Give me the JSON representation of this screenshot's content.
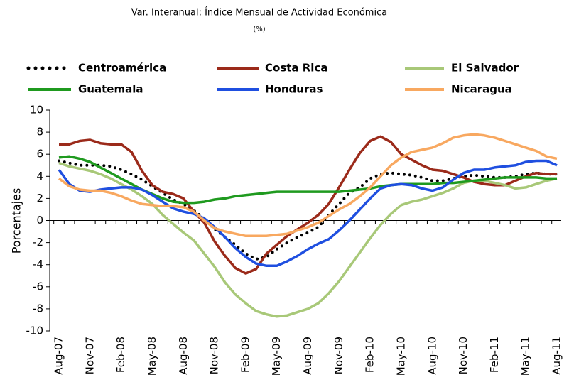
{
  "chart_data": {
    "type": "line",
    "title": "Var. Interanual: Índice Mensual de Actividad Económica",
    "subtitle": "(%)",
    "y_label": "Porcentajes",
    "categories": [
      "Aug-07",
      null,
      null,
      "Nov-07",
      null,
      null,
      "Feb-08",
      null,
      null,
      "May-08",
      null,
      null,
      "Aug-08",
      null,
      null,
      "Nov-08",
      null,
      null,
      "Feb-09",
      null,
      null,
      "May-09",
      null,
      null,
      "Aug-09",
      null,
      null,
      "Nov-09",
      null,
      null,
      "Feb-10",
      null,
      null,
      "May-10",
      null,
      null,
      "Aug-10",
      null,
      null,
      "Nov-10",
      null,
      null,
      "Feb-11",
      null,
      null,
      "May-11",
      null,
      null,
      "Aug-11"
    ],
    "ylim": [
      -10,
      10
    ],
    "yticks": [
      -10,
      -8,
      -6,
      -4,
      -2,
      0,
      2,
      4,
      6,
      8,
      10
    ],
    "legend": "top",
    "series": [
      {
        "name": "Centroamérica",
        "color": "#000000",
        "style": "dotted",
        "values": [
          5.4,
          5.2,
          5.0,
          5.0,
          5.0,
          4.9,
          4.6,
          4.2,
          3.7,
          3.1,
          2.5,
          1.9,
          1.5,
          0.9,
          0.2,
          -0.8,
          -1.5,
          -2.2,
          -3.0,
          -3.5,
          -3.3,
          -2.6,
          -2.0,
          -1.5,
          -1.1,
          -0.6,
          0.5,
          1.5,
          2.5,
          3.0,
          3.8,
          4.2,
          4.3,
          4.2,
          4.1,
          3.9,
          3.6,
          3.6,
          3.8,
          4.0,
          4.1,
          4.0,
          3.9,
          3.9,
          4.0,
          4.2,
          4.3,
          4.2,
          4.2
        ]
      },
      {
        "name": "Costa Rica",
        "color": "#9b2a1a",
        "style": "solid",
        "values": [
          6.9,
          6.9,
          7.2,
          7.3,
          7.0,
          6.9,
          6.9,
          6.2,
          4.5,
          3.2,
          2.6,
          2.4,
          2.0,
          0.8,
          -0.2,
          -1.9,
          -3.2,
          -4.3,
          -4.8,
          -4.4,
          -3.0,
          -2.2,
          -1.4,
          -0.8,
          -0.2,
          0.5,
          1.5,
          3.0,
          4.6,
          6.1,
          7.2,
          7.6,
          7.1,
          6.0,
          5.5,
          5.0,
          4.6,
          4.5,
          4.2,
          3.9,
          3.5,
          3.3,
          3.2,
          3.2,
          3.6,
          4.0,
          4.3,
          4.2,
          4.2
        ]
      },
      {
        "name": "El Salvador",
        "color": "#a8c878",
        "style": "solid",
        "values": [
          5.2,
          4.9,
          4.7,
          4.5,
          4.2,
          3.8,
          3.3,
          2.8,
          2.2,
          1.5,
          0.5,
          -0.3,
          -1.1,
          -1.8,
          -3.0,
          -4.2,
          -5.6,
          -6.7,
          -7.5,
          -8.2,
          -8.5,
          -8.7,
          -8.6,
          -8.3,
          -8.0,
          -7.5,
          -6.6,
          -5.5,
          -4.2,
          -2.9,
          -1.6,
          -0.4,
          0.6,
          1.4,
          1.7,
          1.9,
          2.2,
          2.5,
          2.9,
          3.4,
          3.6,
          3.6,
          3.4,
          3.2,
          2.9,
          3.0,
          3.3,
          3.6,
          3.8
        ]
      },
      {
        "name": "Guatemala",
        "color": "#1f9a1f",
        "style": "solid",
        "values": [
          5.7,
          5.8,
          5.6,
          5.3,
          4.8,
          4.3,
          3.8,
          3.3,
          2.8,
          2.4,
          2.0,
          1.7,
          1.6,
          1.6,
          1.7,
          1.9,
          2.0,
          2.2,
          2.3,
          2.4,
          2.5,
          2.6,
          2.6,
          2.6,
          2.6,
          2.6,
          2.6,
          2.6,
          2.7,
          2.8,
          2.9,
          3.1,
          3.2,
          3.3,
          3.3,
          3.3,
          3.3,
          3.4,
          3.4,
          3.5,
          3.6,
          3.7,
          3.8,
          3.9,
          3.9,
          3.9,
          3.9,
          3.8,
          3.8
        ]
      },
      {
        "name": "Honduras",
        "color": "#1f4fe0",
        "style": "solid",
        "values": [
          4.6,
          3.3,
          2.7,
          2.6,
          2.8,
          2.9,
          3.0,
          3.0,
          2.8,
          2.3,
          1.7,
          1.1,
          0.8,
          0.6,
          0.2,
          -0.6,
          -1.5,
          -2.5,
          -3.3,
          -3.9,
          -4.1,
          -4.1,
          -3.7,
          -3.2,
          -2.6,
          -2.1,
          -1.7,
          -0.9,
          0.0,
          1.0,
          2.0,
          2.9,
          3.2,
          3.3,
          3.2,
          2.9,
          2.7,
          3.0,
          3.7,
          4.3,
          4.6,
          4.6,
          4.8,
          4.9,
          5.0,
          5.3,
          5.4,
          5.4,
          5.0
        ]
      },
      {
        "name": "Nicaragua",
        "color": "#f8a860",
        "style": "solid",
        "values": [
          3.8,
          3.1,
          2.8,
          2.7,
          2.7,
          2.5,
          2.2,
          1.8,
          1.5,
          1.4,
          1.3,
          1.3,
          1.2,
          0.8,
          0.0,
          -0.7,
          -1.0,
          -1.2,
          -1.4,
          -1.4,
          -1.4,
          -1.3,
          -1.2,
          -0.9,
          -0.6,
          -0.2,
          0.4,
          1.0,
          1.5,
          2.2,
          3.0,
          4.0,
          5.0,
          5.7,
          6.2,
          6.4,
          6.6,
          7.0,
          7.5,
          7.7,
          7.8,
          7.7,
          7.5,
          7.2,
          6.9,
          6.6,
          6.3,
          5.8,
          5.6
        ]
      }
    ]
  }
}
